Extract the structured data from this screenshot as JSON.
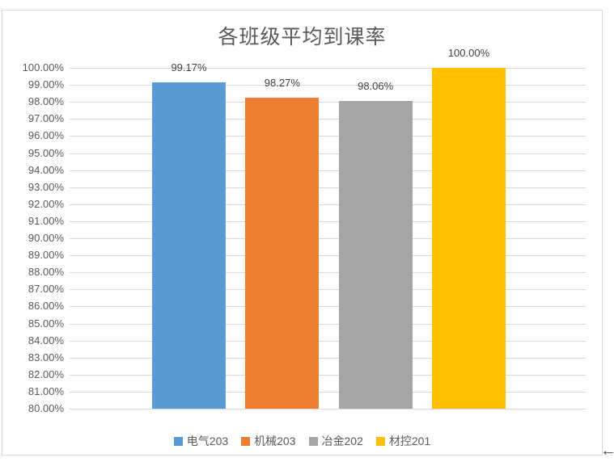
{
  "chart_data": {
    "type": "bar",
    "title": "各班级平均到课率",
    "categories": [
      "电气203",
      "机械203",
      "冶金202",
      "材控201"
    ],
    "values": [
      99.17,
      98.27,
      98.06,
      100.0
    ],
    "value_labels": [
      "99.17%",
      "98.27%",
      "98.06%",
      "100.00%"
    ],
    "series_colors": [
      "#5b9bd5",
      "#ed7d31",
      "#a5a5a5",
      "#ffc000"
    ],
    "ylim": [
      80,
      100
    ],
    "ytick_step": 1,
    "ytick_labels": [
      "100.00%",
      "99.00%",
      "98.00%",
      "97.00%",
      "96.00%",
      "95.00%",
      "94.00%",
      "93.00%",
      "92.00%",
      "91.00%",
      "90.00%",
      "89.00%",
      "88.00%",
      "87.00%",
      "86.00%",
      "85.00%",
      "84.00%",
      "83.00%",
      "82.00%",
      "81.00%",
      "80.00%"
    ],
    "xlabel": "",
    "ylabel": "",
    "grid": true,
    "legend_position": "bottom"
  },
  "colors": {
    "title_text": "#595959",
    "axis_text": "#595959",
    "data_label_text": "#404040",
    "gridline": "#d9d9d9",
    "chart_border": "#d9d9d9",
    "background": "#ffffff"
  },
  "overlay": {
    "left_arrow_glyph": "←"
  }
}
